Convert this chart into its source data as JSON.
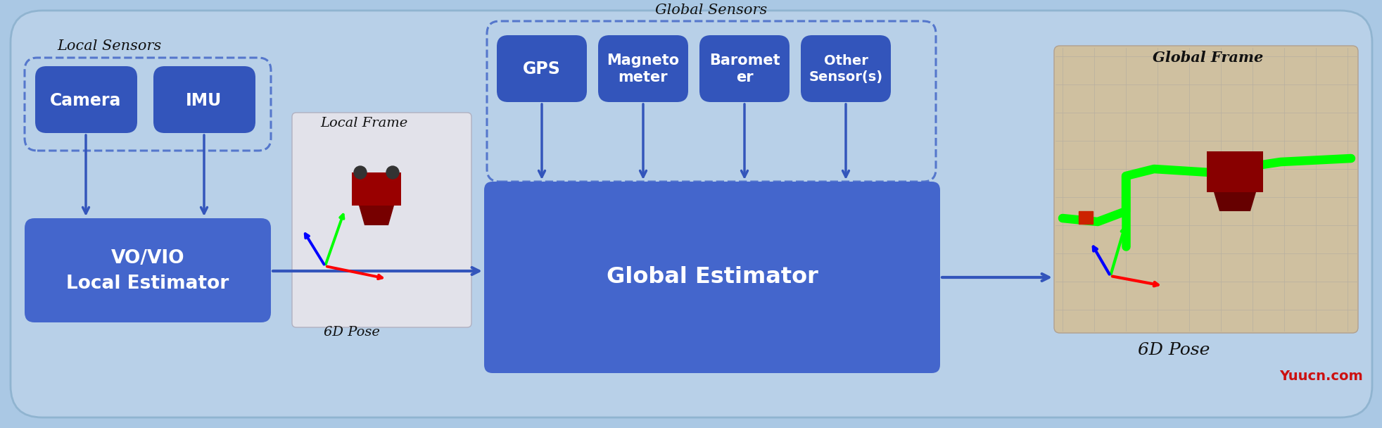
{
  "fig_w": 19.65,
  "fig_h": 6.08,
  "bg": "#aac8e4",
  "dark_blue": "#3355bb",
  "mid_blue": "#4466cc",
  "arrow_blue": "#3355bb",
  "dash_color": "#5577cc",
  "white": "#ffffff",
  "black": "#111111",
  "red_text": "#cc1111",
  "local_sensors_lbl": "Local Sensors",
  "global_sensors_lbl": "Global Sensors",
  "camera_lbl": "Camera",
  "imu_lbl": "IMU",
  "vovio_lbl": "VO/VIO\nLocal Estimator",
  "local_frame_lbl": "Local Frame",
  "pose1_lbl": "6D Pose",
  "global_est_lbl": "Global Estimator",
  "global_frame_lbl": "Global Frame",
  "pose2_lbl": "6D Pose",
  "yuucn_lbl": "Yuucn.com",
  "gps_lbl": "GPS",
  "magneto_lbl": "Magneto\nmeter",
  "baromet_lbl": "Baromet\ner",
  "other_lbl": "Other\nSensor(s)"
}
